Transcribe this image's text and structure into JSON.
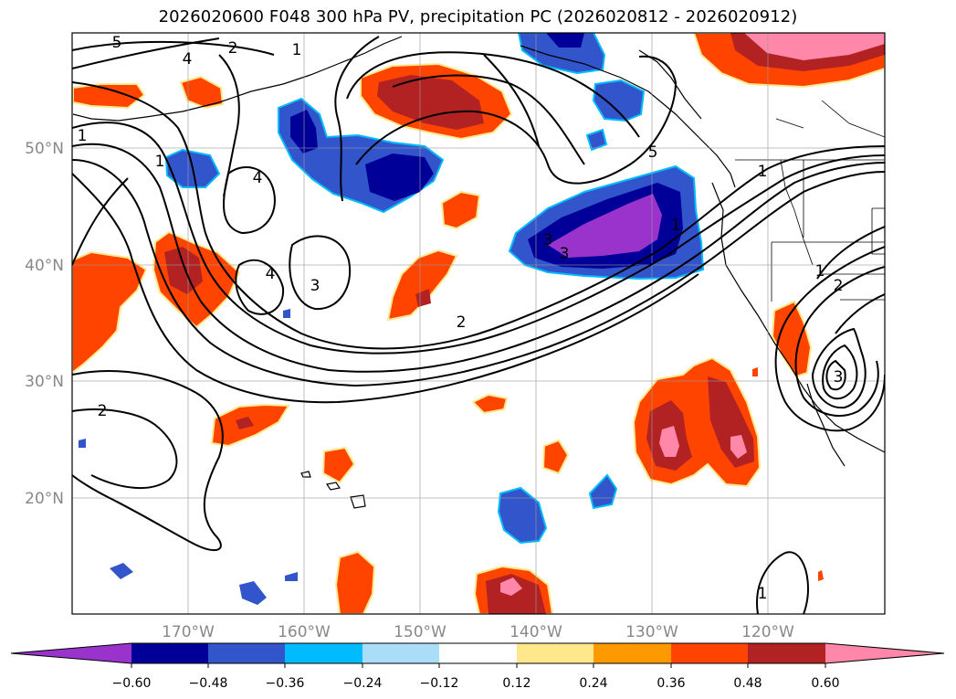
{
  "title": "2026020600 F048 300 hPa PV, precipitation PC (2026020812 - 2026020912)",
  "axes": {
    "lon_labels": [
      "170°W",
      "160°W",
      "150°W",
      "140°W",
      "130°W",
      "120°W"
    ],
    "lat_labels": [
      "50°N",
      "40°N",
      "30°N",
      "20°N"
    ]
  },
  "contour_labels": [
    "5",
    "2",
    "1",
    "1",
    "4",
    "4",
    "4",
    "3",
    "1",
    "1",
    "2",
    "2",
    "5",
    "3",
    "3",
    "1",
    "2",
    "1",
    "1",
    "3"
  ],
  "colorbar": {
    "ticks": [
      "−0.60",
      "−0.48",
      "−0.36",
      "−0.24",
      "−0.12",
      "0.12",
      "0.24",
      "0.36",
      "0.48",
      "0.60"
    ],
    "colors": [
      "#9933cc",
      "#000099",
      "#3355cc",
      "#00bbff",
      "#aaddf8",
      "#ffffff",
      "#ffe88c",
      "#ff9900",
      "#ff4400",
      "#b22222",
      "#ff88aa"
    ]
  }
}
